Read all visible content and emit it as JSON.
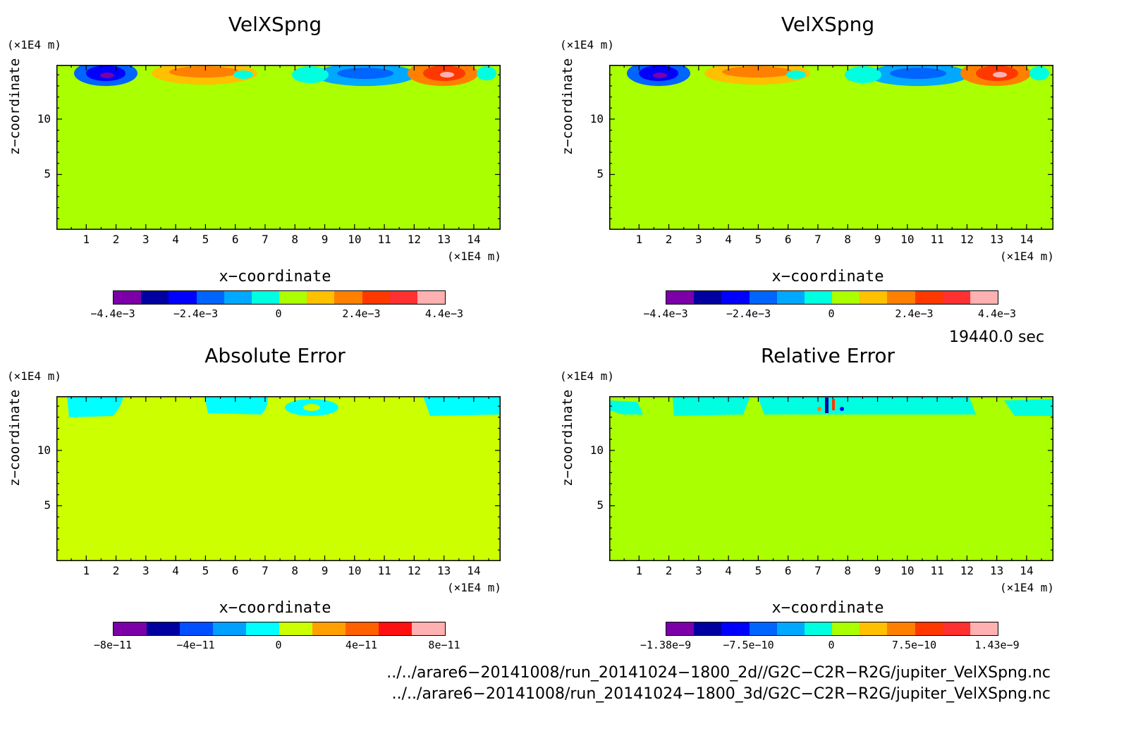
{
  "chart_data": [
    {
      "type": "heatmap",
      "title": "VelXSpng",
      "xlabel": "x−coordinate",
      "ylabel": "z−coordinate",
      "x_unit": "(×1E4 m)",
      "y_unit": "(×1E4 m)",
      "x_ticks": [
        "1",
        "2",
        "3",
        "4",
        "5",
        "6",
        "7",
        "8",
        "9",
        "10",
        "11",
        "12",
        "13",
        "14"
      ],
      "y_ticks": [
        "5",
        "10"
      ],
      "xlim": [
        0,
        14.9
      ],
      "ylim": [
        0,
        14.9
      ],
      "colorbar_labels": [
        "−4.4e−3",
        "−2.4e−3",
        "0",
        "2.4e−3",
        "4.4e−3"
      ],
      "colors": [
        "#7b00a8",
        "#0000a0",
        "#0000ff",
        "#0064ff",
        "#00a8ff",
        "#00ffe0",
        "#aaff00",
        "#ffc000",
        "#ff8000",
        "#ff3800",
        "#ff3030",
        "#ffb0b0"
      ]
    },
    {
      "type": "heatmap",
      "title": "VelXSpng",
      "xlabel": "x−coordinate",
      "ylabel": "z−coordinate",
      "x_unit": "(×1E4 m)",
      "y_unit": "(×1E4 m)",
      "x_ticks": [
        "1",
        "2",
        "3",
        "4",
        "5",
        "6",
        "7",
        "8",
        "9",
        "10",
        "11",
        "12",
        "13",
        "14"
      ],
      "y_ticks": [
        "5",
        "10"
      ],
      "xlim": [
        0,
        14.9
      ],
      "ylim": [
        0,
        14.9
      ],
      "colorbar_labels": [
        "−4.4e−3",
        "−2.4e−3",
        "0",
        "2.4e−3",
        "4.4e−3"
      ],
      "colors": [
        "#7b00a8",
        "#0000a0",
        "#0000ff",
        "#0064ff",
        "#00a8ff",
        "#00ffe0",
        "#aaff00",
        "#ffc000",
        "#ff8000",
        "#ff3800",
        "#ff3030",
        "#ffb0b0"
      ]
    },
    {
      "type": "heatmap",
      "title": "Absolute Error",
      "xlabel": "x−coordinate",
      "ylabel": "z−coordinate",
      "x_unit": "(×1E4 m)",
      "y_unit": "(×1E4 m)",
      "x_ticks": [
        "1",
        "2",
        "3",
        "4",
        "5",
        "6",
        "7",
        "8",
        "9",
        "10",
        "11",
        "12",
        "13",
        "14"
      ],
      "y_ticks": [
        "5",
        "10"
      ],
      "xlim": [
        0,
        14.9
      ],
      "ylim": [
        0,
        14.9
      ],
      "colorbar_labels": [
        "−8e−11",
        "−4e−11",
        "0",
        "4e−11",
        "8e−11"
      ],
      "colors": [
        "#7b00a8",
        "#0000a0",
        "#0050ff",
        "#00a0ff",
        "#00ffff",
        "#ccff00",
        "#ffa000",
        "#ff6000",
        "#ff1010",
        "#ffb0b0"
      ]
    },
    {
      "type": "heatmap",
      "title": "Relative Error",
      "xlabel": "x−coordinate",
      "ylabel": "z−coordinate",
      "x_unit": "(×1E4 m)",
      "y_unit": "(×1E4 m)",
      "x_ticks": [
        "1",
        "2",
        "3",
        "4",
        "5",
        "6",
        "7",
        "8",
        "9",
        "10",
        "11",
        "12",
        "13",
        "14"
      ],
      "y_ticks": [
        "5",
        "10"
      ],
      "xlim": [
        0,
        14.9
      ],
      "ylim": [
        0,
        14.9
      ],
      "colorbar_labels": [
        "−1.38e−9",
        "−7.5e−10",
        "0",
        "7.5e−10",
        "1.43e−9"
      ],
      "colors": [
        "#7b00a8",
        "#0000a0",
        "#0000ff",
        "#0064ff",
        "#00a8ff",
        "#00ffe0",
        "#aaff00",
        "#ffc000",
        "#ff8000",
        "#ff3800",
        "#ff3030",
        "#ffb0b0"
      ]
    }
  ],
  "time_label": "19440.0 sec",
  "footer": {
    "path1": "../../arare6−20141008/run_20141024−1800_2d//G2C−C2R−R2G/jupiter_VelXSpng.nc",
    "path2": "../../arare6−20141008/run_20141024−1800_3d/G2C−C2R−R2G/jupiter_VelXSpng.nc"
  }
}
